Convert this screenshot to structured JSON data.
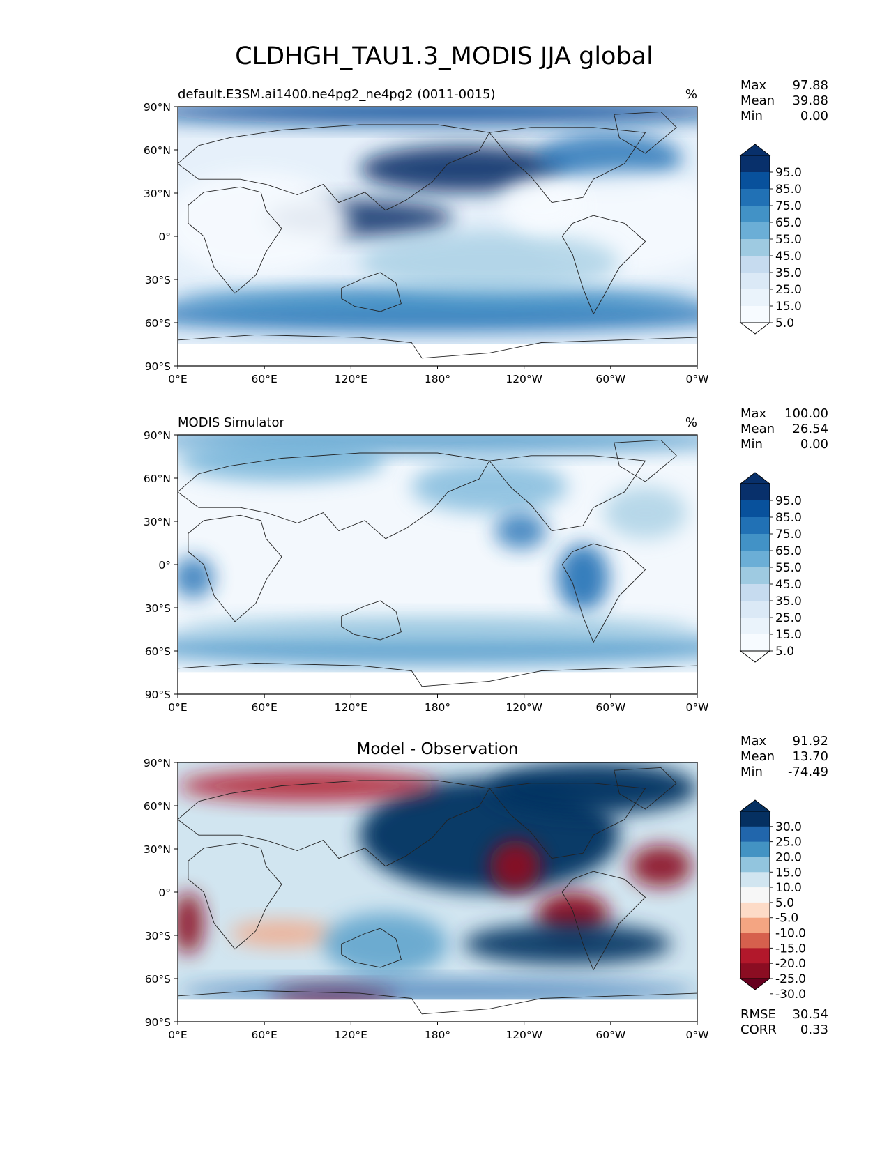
{
  "figure": {
    "title": "CLDHGH_TAU1.3_MODIS JJA global"
  },
  "axes": {
    "lat_labels": [
      "90°N",
      "60°N",
      "30°N",
      "0°",
      "30°S",
      "60°S",
      "90°S"
    ],
    "lon_labels": [
      "0°E",
      "60°E",
      "120°E",
      "180°",
      "120°W",
      "60°W",
      "0°W"
    ]
  },
  "panels": [
    {
      "id": "model",
      "left_title": "default.E3SM.ai1400.ne4pg2_ne4pg2 (0011-0015)",
      "center_title": "",
      "units": "%",
      "stats": [
        {
          "label": "Max",
          "value": "97.88"
        },
        {
          "label": "Mean",
          "value": "39.88"
        },
        {
          "label": "Min",
          "value": "0.00"
        }
      ],
      "colorbar": {
        "labels": [
          "95.0",
          "85.0",
          "75.0",
          "65.0",
          "55.0",
          "45.0",
          "35.0",
          "25.0",
          "15.0",
          "5.0"
        ],
        "colors": [
          "#08306b",
          "#08519c",
          "#2171b5",
          "#4292c6",
          "#6baed6",
          "#9ecae1",
          "#c6dbef",
          "#dbe9f6",
          "#eaf3fb",
          "#f7fbff"
        ],
        "over_color": "#08306b",
        "under_color": "#ffffff"
      }
    },
    {
      "id": "obs",
      "left_title": "MODIS Simulator",
      "center_title": "",
      "units": "%",
      "stats": [
        {
          "label": "Max",
          "value": "100.00"
        },
        {
          "label": "Mean",
          "value": "26.54"
        },
        {
          "label": "Min",
          "value": "0.00"
        }
      ],
      "colorbar": {
        "labels": [
          "95.0",
          "85.0",
          "75.0",
          "65.0",
          "55.0",
          "45.0",
          "35.0",
          "25.0",
          "15.0",
          "5.0"
        ],
        "colors": [
          "#08306b",
          "#08519c",
          "#2171b5",
          "#4292c6",
          "#6baed6",
          "#9ecae1",
          "#c6dbef",
          "#dbe9f6",
          "#eaf3fb",
          "#f7fbff"
        ],
        "over_color": "#08306b",
        "under_color": "#ffffff"
      }
    },
    {
      "id": "diff",
      "left_title": "",
      "center_title": "Model - Observation",
      "units": "",
      "stats": [
        {
          "label": "Max",
          "value": "91.92"
        },
        {
          "label": "Mean",
          "value": "13.70"
        },
        {
          "label": "Min",
          "value": "-74.49"
        }
      ],
      "extra_stats": [
        {
          "label": "RMSE",
          "value": "30.54"
        },
        {
          "label": "CORR",
          "value": "0.33"
        }
      ],
      "colorbar": {
        "labels": [
          "30.0",
          "25.0",
          "20.0",
          "15.0",
          "10.0",
          "5.0",
          "-5.0",
          "-10.0",
          "-15.0",
          "-20.0",
          "-25.0",
          "-30.0"
        ],
        "colors": [
          "#053061",
          "#2166ac",
          "#4393c3",
          "#92c5de",
          "#d1e5f0",
          "#f7f7f7",
          "#fddbc7",
          "#f4a582",
          "#d6604d",
          "#b2182b",
          "#8b0d22"
        ],
        "over_color": "#053061",
        "under_color": "#67001f"
      }
    }
  ]
}
